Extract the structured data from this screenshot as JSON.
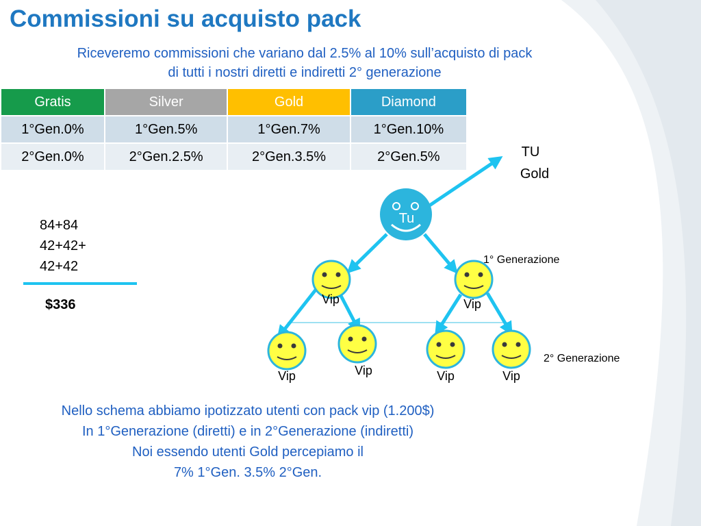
{
  "title": "Commissioni su acquisto pack",
  "subtitle": {
    "line1": "Riceveremo commissioni che variano dal 2.5% al 10% sull’acquisto di pack",
    "line2": "di tutti i nostri diretti e indiretti 2° generazione"
  },
  "table": {
    "headers": [
      {
        "label": "Gratis",
        "color": "#169b4b"
      },
      {
        "label": "Silver",
        "color": "#a6a6a6"
      },
      {
        "label": "Gold",
        "color": "#ffbf00"
      },
      {
        "label": "Diamond",
        "color": "#2b9ec8"
      }
    ],
    "rows": [
      [
        "1°Gen.0%",
        "1°Gen.5%",
        "1°Gen.7%",
        "1°Gen.10%"
      ],
      [
        "2°Gen.0%",
        "2°Gen.2.5%",
        "2°Gen.3.5%",
        "2°Gen.5%"
      ]
    ]
  },
  "calculation": {
    "lines": [
      "84+84",
      "42+42+",
      "42+42"
    ],
    "total": "$336"
  },
  "diagram": {
    "root_label": "Tu",
    "target_label_line1": "TU",
    "target_label_line2": "Gold",
    "gen1_label": "1° Generazione",
    "gen2_label": "2° Generazione",
    "vip_label": "Vip",
    "root_color": "#2cb5dd",
    "vip_color": "#ffff44",
    "arrow_color": "#1ec3f0"
  },
  "notes": [
    "Nello schema abbiamo ipotizzato utenti con pack vip (1.200$)",
    "In 1°Generazione (diretti) e in 2°Generazione (indiretti)",
    "Noi essendo utenti Gold percepiamo il",
    "7% 1°Gen. 3.5% 2°Gen."
  ]
}
